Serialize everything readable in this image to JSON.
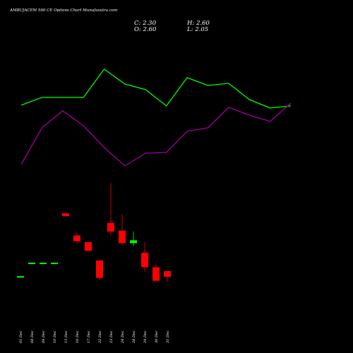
{
  "header": {
    "title": "AMBUJACEM 590 CE Options Chart Munafasutra.com",
    "close": "C: 2.30",
    "high": "H: 2.60",
    "open": "O: 2.60",
    "low": "L: 2.05"
  },
  "chart_data": {
    "type": "candlestick",
    "categories": [
      "01 Dec",
      "08 Dec",
      "09 Dec",
      "10 Dec",
      "13 Dec",
      "16 Dec",
      "17 Dec",
      "22 Dec",
      "23 Dec",
      "24 Dec",
      "28 Dec",
      "29 Dec",
      "30 Dec",
      "31 Dec"
    ],
    "open": [
      2.3,
      3.0,
      3.0,
      3.0,
      5.6,
      4.45,
      4.1,
      3.15,
      5.1,
      4.7,
      4.05,
      3.55,
      2.8,
      2.6
    ],
    "close": [
      2.3,
      3.0,
      3.0,
      3.0,
      5.45,
      4.15,
      3.65,
      2.25,
      4.65,
      4.05,
      4.2,
      2.8,
      2.1,
      2.3
    ],
    "high": [
      2.3,
      3.0,
      3.0,
      3.0,
      5.6,
      4.6,
      4.1,
      3.15,
      7.15,
      5.55,
      4.65,
      4.1,
      2.95,
      2.6
    ],
    "low": [
      2.3,
      3.0,
      3.0,
      3.0,
      5.45,
      4.0,
      3.65,
      2.15,
      4.45,
      3.95,
      3.9,
      2.55,
      2.0,
      2.05
    ],
    "up_color": "#00ff00",
    "down_color": "#ff0000",
    "ylim": [
      0,
      10
    ],
    "series": [
      {
        "color": "#00ff00",
        "axis": "y2",
        "values": [
          55.5,
          61,
          61,
          61,
          81,
          70.5,
          66.5,
          55,
          75,
          69.5,
          71,
          59.5,
          53.5,
          55
        ]
      },
      {
        "color": "#a000a0",
        "axis": "y2",
        "values": [
          13.5,
          39.5,
          51.5,
          41,
          25.5,
          12.5,
          21.5,
          22,
          37,
          39.5,
          54,
          48.5,
          44,
          57
        ]
      }
    ],
    "y2lim": [
      0,
      100
    ]
  }
}
